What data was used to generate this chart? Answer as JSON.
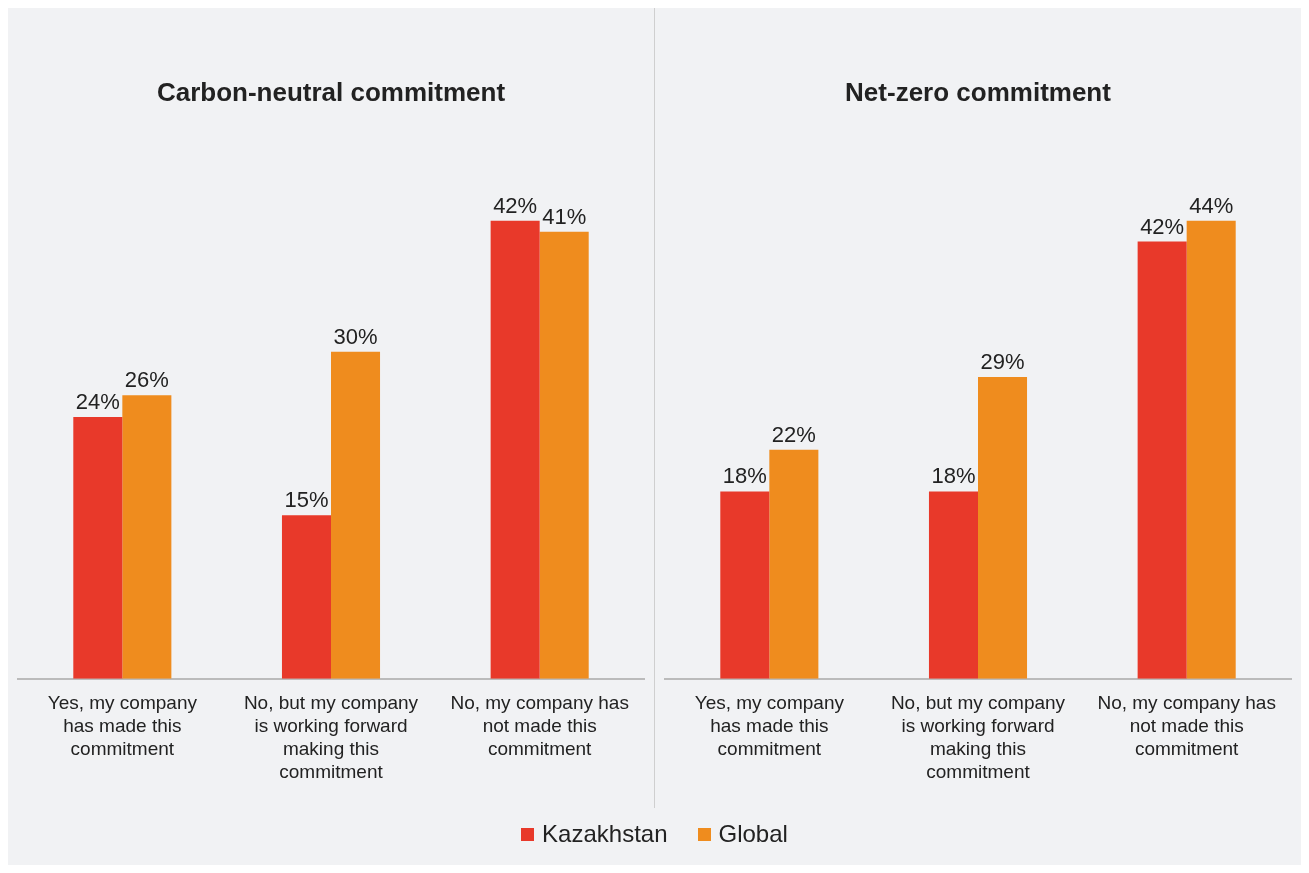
{
  "chart_data": [
    {
      "type": "bar",
      "title": "Carbon-neutral commitment",
      "categories": [
        "Yes, my company has made this commitment",
        "No, but my company is working forward making this commitment",
        "No, my company has not made this commitment"
      ],
      "series": [
        {
          "name": "Kazakhstan",
          "color": "#e8392a",
          "values": [
            24,
            15,
            42
          ],
          "value_labels": [
            "24%",
            "15%",
            "42%"
          ]
        },
        {
          "name": "Global",
          "color": "#ef8c1e",
          "values": [
            26,
            30,
            41
          ],
          "value_labels": [
            "26%",
            "30%",
            "41%"
          ]
        }
      ],
      "grid": false,
      "legend": "bottom"
    },
    {
      "type": "bar",
      "title": "Net-zero commitment",
      "categories": [
        "Yes, my company has made this commitment",
        "No, but my company is working forward making this commitment",
        "No, my company has not made this commitment"
      ],
      "series": [
        {
          "color": "#e8392a",
          "values": [
            18,
            18,
            42
          ],
          "value_labels": [
            "18%",
            "18%",
            "42%"
          ]
        },
        {
          "color": "#ef8c1e",
          "values": [
            22,
            29,
            44
          ],
          "value_labels": [
            "22%",
            "29%",
            "44%"
          ]
        }
      ],
      "grid": false
    }
  ]
}
